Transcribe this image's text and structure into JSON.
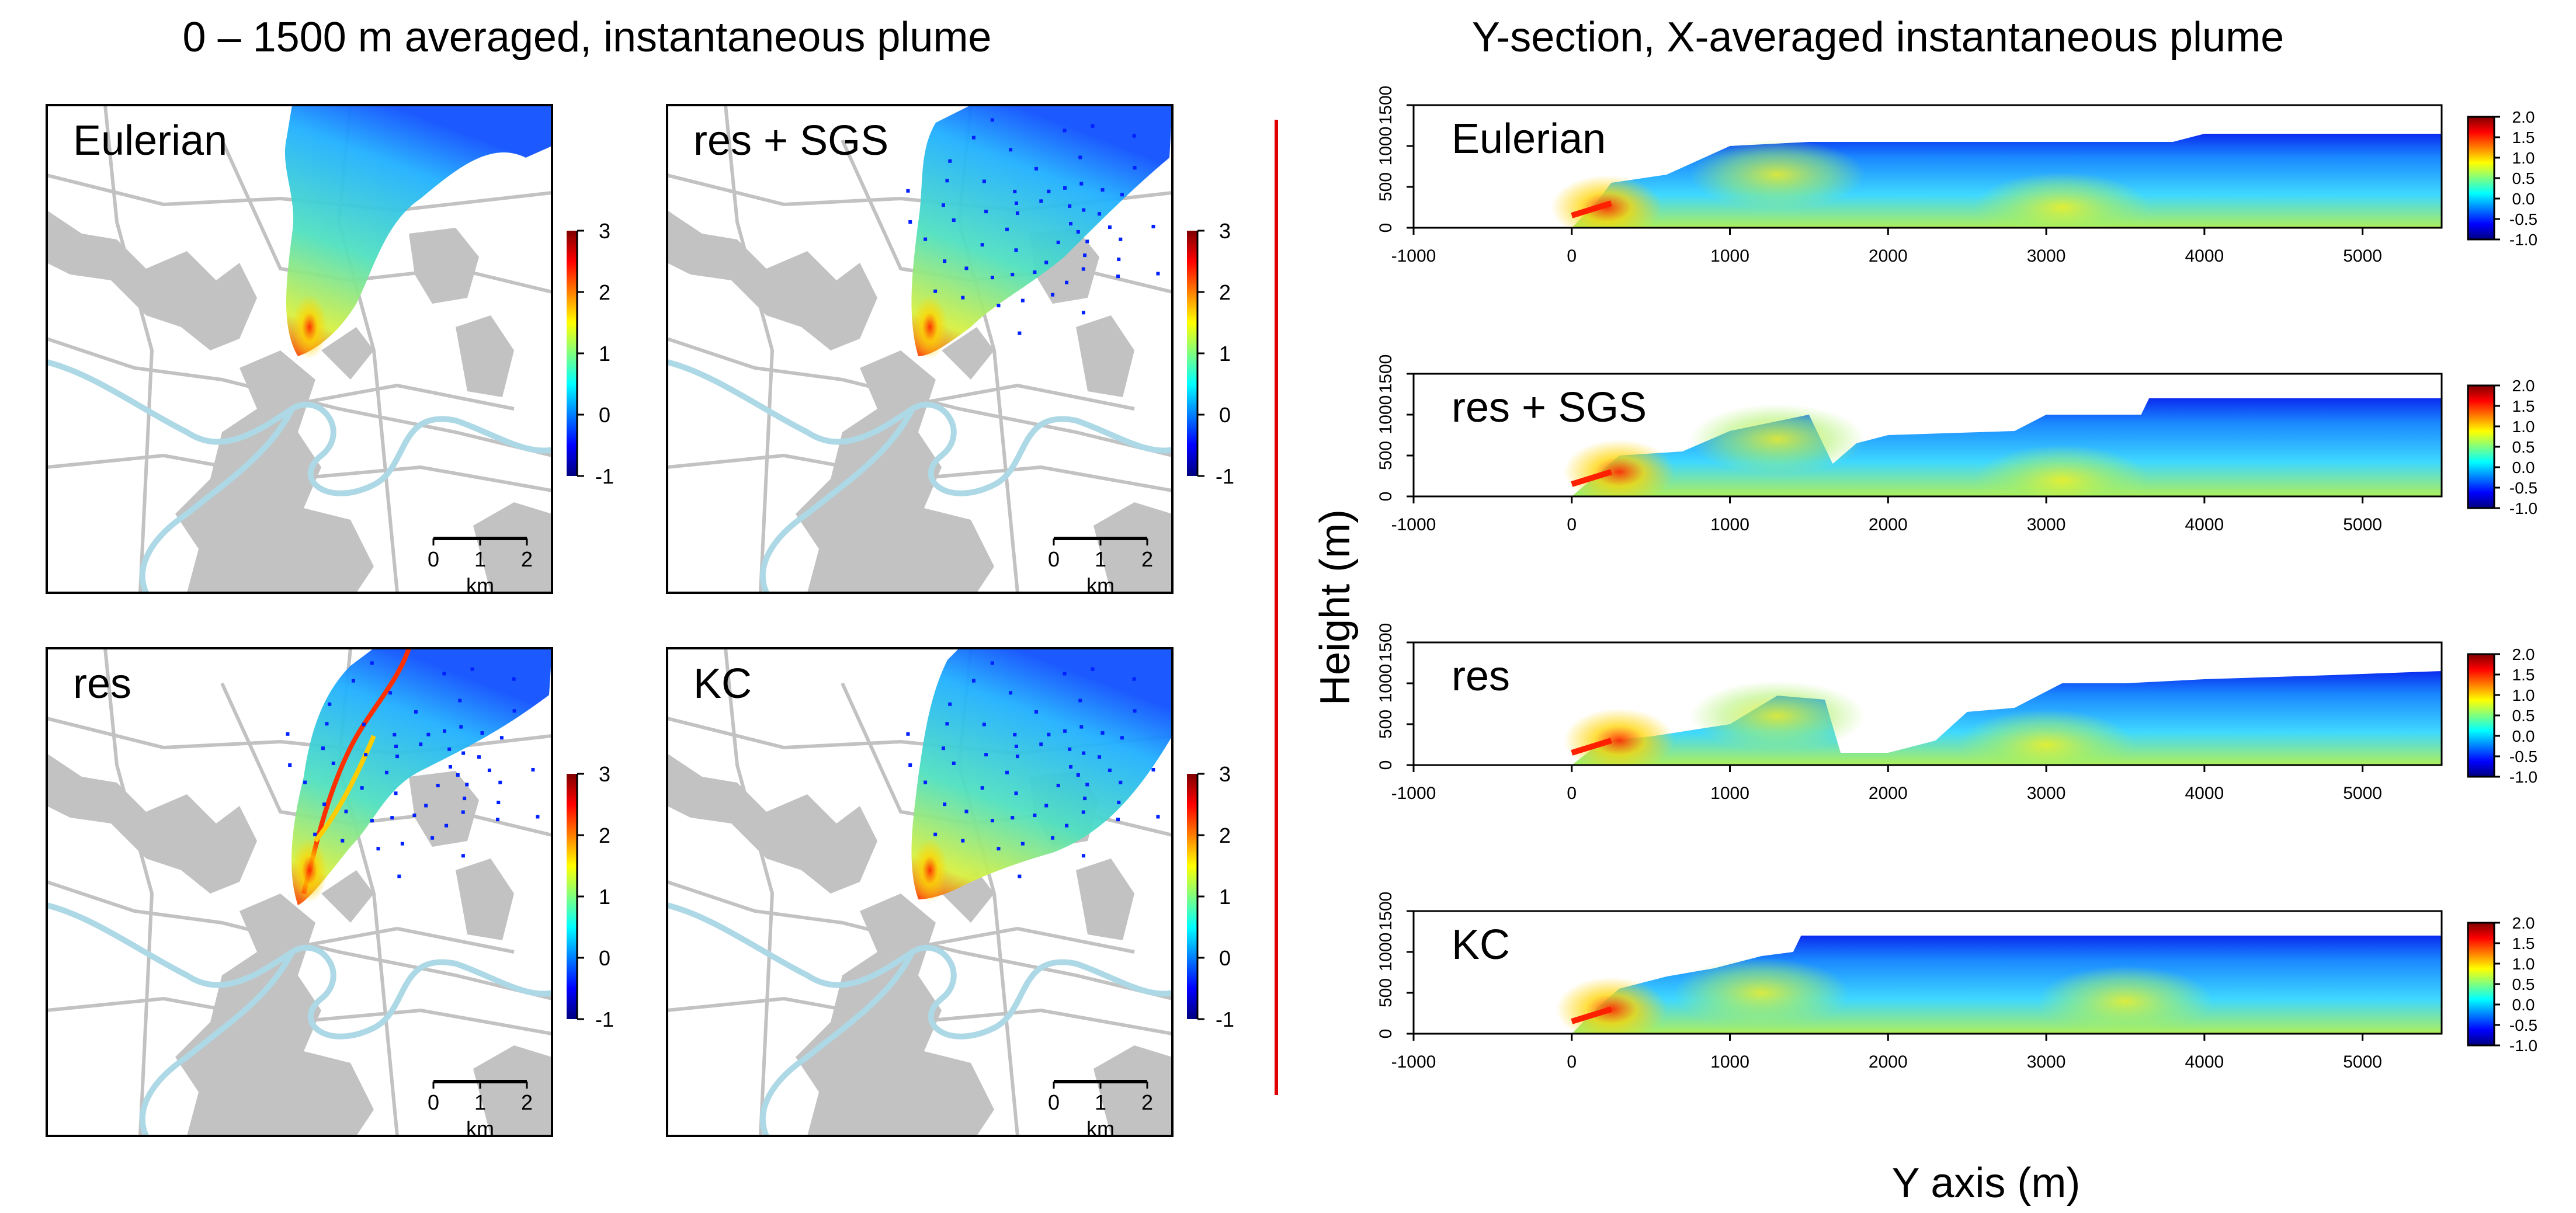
{
  "left_title": "0 – 1500 m averaged, instantaneous plume",
  "right_title": "Y-section, X-averaged instantaneous plume",
  "colors": {
    "background": "#ffffff",
    "land": "#c2c2c2",
    "river": "#add8e6",
    "divider": "#e00000",
    "frame": "#000000",
    "colormap": [
      "#00007f",
      "#0000ff",
      "#007fff",
      "#00ffff",
      "#7fff7f",
      "#ffff00",
      "#ff7f00",
      "#ff0000",
      "#7f0000"
    ]
  },
  "map_panels": [
    {
      "label": "Eulerian",
      "colorbar": {
        "ticks": [
          "3",
          "2",
          "1",
          "0",
          "-1"
        ]
      },
      "scalebar": {
        "ticks": [
          "0",
          "1",
          "2"
        ],
        "unit": "km"
      }
    },
    {
      "label": "res + SGS",
      "colorbar": {
        "ticks": [
          "3",
          "2",
          "1",
          "0",
          "-1"
        ]
      },
      "scalebar": {
        "ticks": [
          "0",
          "1",
          "2"
        ],
        "unit": "km"
      }
    },
    {
      "label": "res",
      "colorbar": {
        "ticks": [
          "3",
          "2",
          "1",
          "0",
          "-1"
        ]
      },
      "scalebar": {
        "ticks": [
          "0",
          "1",
          "2"
        ],
        "unit": "km"
      }
    },
    {
      "label": "KC",
      "colorbar": {
        "ticks": [
          "3",
          "2",
          "1",
          "0",
          "-1"
        ]
      },
      "scalebar": {
        "ticks": [
          "0",
          "1",
          "2"
        ],
        "unit": "km"
      }
    }
  ],
  "chart_data": [
    {
      "type": "heatmap",
      "panel": "Eulerian",
      "xlabel": "Y axis (m)",
      "ylabel": "Height (m)",
      "xlim": [
        -1000,
        5500
      ],
      "ylim": [
        0,
        1500
      ],
      "x_ticks": [
        "-1000",
        "0",
        "1000",
        "2000",
        "3000",
        "4000",
        "5000"
      ],
      "y_ticks": [
        "0",
        "500",
        "1000",
        "1500"
      ],
      "colorbar": {
        "min": -1.0,
        "max": 2.0,
        "ticks": [
          "2.0",
          "1.5",
          "1.0",
          "0.5",
          "0.0",
          "-0.5",
          "-1.0"
        ]
      },
      "plume_top_m": [
        [
          -1000,
          0
        ],
        [
          0,
          0
        ],
        [
          150,
          300
        ],
        [
          250,
          550
        ],
        [
          600,
          650
        ],
        [
          1000,
          1000
        ],
        [
          1500,
          1050
        ],
        [
          2500,
          1050
        ],
        [
          3800,
          1050
        ],
        [
          4000,
          1150
        ],
        [
          5500,
          1150
        ]
      ],
      "hotspots": [
        {
          "x": 220,
          "y": 250,
          "value": 1.8
        },
        {
          "x": 1300,
          "y": 650,
          "value": 0.4
        },
        {
          "x": 3100,
          "y": 250,
          "value": 0.6
        }
      ]
    },
    {
      "type": "heatmap",
      "panel": "res + SGS",
      "xlabel": "Y axis (m)",
      "ylabel": "Height (m)",
      "xlim": [
        -1000,
        5500
      ],
      "ylim": [
        0,
        1500
      ],
      "x_ticks": [
        "-1000",
        "0",
        "1000",
        "2000",
        "3000",
        "4000",
        "5000"
      ],
      "y_ticks": [
        "0",
        "500",
        "1000",
        "1500"
      ],
      "colorbar": {
        "min": -1.0,
        "max": 2.0,
        "ticks": [
          "2.0",
          "1.5",
          "1.0",
          "0.5",
          "0.0",
          "-0.5",
          "-1.0"
        ]
      },
      "plume_top_m": [
        [
          -1000,
          0
        ],
        [
          0,
          0
        ],
        [
          150,
          250
        ],
        [
          300,
          500
        ],
        [
          700,
          550
        ],
        [
          1000,
          800
        ],
        [
          1500,
          1000
        ],
        [
          1650,
          400
        ],
        [
          1800,
          650
        ],
        [
          2000,
          750
        ],
        [
          2800,
          800
        ],
        [
          3000,
          1000
        ],
        [
          3600,
          1000
        ],
        [
          3650,
          1200
        ],
        [
          5500,
          1200
        ]
      ],
      "hotspots": [
        {
          "x": 300,
          "y": 300,
          "value": 1.6
        },
        {
          "x": 1300,
          "y": 700,
          "value": 0.8
        },
        {
          "x": 3100,
          "y": 200,
          "value": 1.0
        }
      ]
    },
    {
      "type": "heatmap",
      "panel": "res",
      "xlabel": "Y axis (m)",
      "ylabel": "Height (m)",
      "xlim": [
        -1000,
        5500
      ],
      "ylim": [
        0,
        1500
      ],
      "x_ticks": [
        "-1000",
        "0",
        "1000",
        "2000",
        "3000",
        "4000",
        "5000"
      ],
      "y_ticks": [
        "0",
        "500",
        "1000",
        "1500"
      ],
      "colorbar": {
        "min": -1.0,
        "max": 2.0,
        "ticks": [
          "2.0",
          "1.5",
          "1.0",
          "0.5",
          "0.0",
          "-0.5",
          "-1.0"
        ]
      },
      "plume_top_m": [
        [
          -1000,
          0
        ],
        [
          0,
          0
        ],
        [
          200,
          300
        ],
        [
          500,
          350
        ],
        [
          1000,
          500
        ],
        [
          1300,
          850
        ],
        [
          1600,
          800
        ],
        [
          1700,
          150
        ],
        [
          2000,
          150
        ],
        [
          2300,
          300
        ],
        [
          2500,
          650
        ],
        [
          2800,
          700
        ],
        [
          3100,
          1000
        ],
        [
          3500,
          1000
        ],
        [
          4000,
          1050
        ],
        [
          4800,
          1100
        ],
        [
          5500,
          1150
        ]
      ],
      "hotspots": [
        {
          "x": 300,
          "y": 300,
          "value": 1.8
        },
        {
          "x": 1300,
          "y": 600,
          "value": 1.0
        },
        {
          "x": 3000,
          "y": 250,
          "value": 1.2
        }
      ]
    },
    {
      "type": "heatmap",
      "panel": "KC",
      "xlabel": "Y axis (m)",
      "ylabel": "Height (m)",
      "xlim": [
        -1000,
        5500
      ],
      "ylim": [
        0,
        1500
      ],
      "x_ticks": [
        "-1000",
        "0",
        "1000",
        "2000",
        "3000",
        "4000",
        "5000"
      ],
      "y_ticks": [
        "0",
        "500",
        "1000",
        "1500"
      ],
      "colorbar": {
        "min": -1.0,
        "max": 2.0,
        "ticks": [
          "2.0",
          "1.5",
          "1.0",
          "0.5",
          "0.0",
          "-0.5",
          "-1.0"
        ]
      },
      "plume_top_m": [
        [
          -1000,
          0
        ],
        [
          0,
          0
        ],
        [
          150,
          300
        ],
        [
          300,
          550
        ],
        [
          600,
          700
        ],
        [
          900,
          800
        ],
        [
          1200,
          950
        ],
        [
          1400,
          1000
        ],
        [
          1450,
          1200
        ],
        [
          5500,
          1200
        ]
      ],
      "hotspots": [
        {
          "x": 250,
          "y": 300,
          "value": 1.8
        },
        {
          "x": 1200,
          "y": 500,
          "value": 0.5
        },
        {
          "x": 3500,
          "y": 400,
          "value": 0.4
        }
      ]
    }
  ]
}
